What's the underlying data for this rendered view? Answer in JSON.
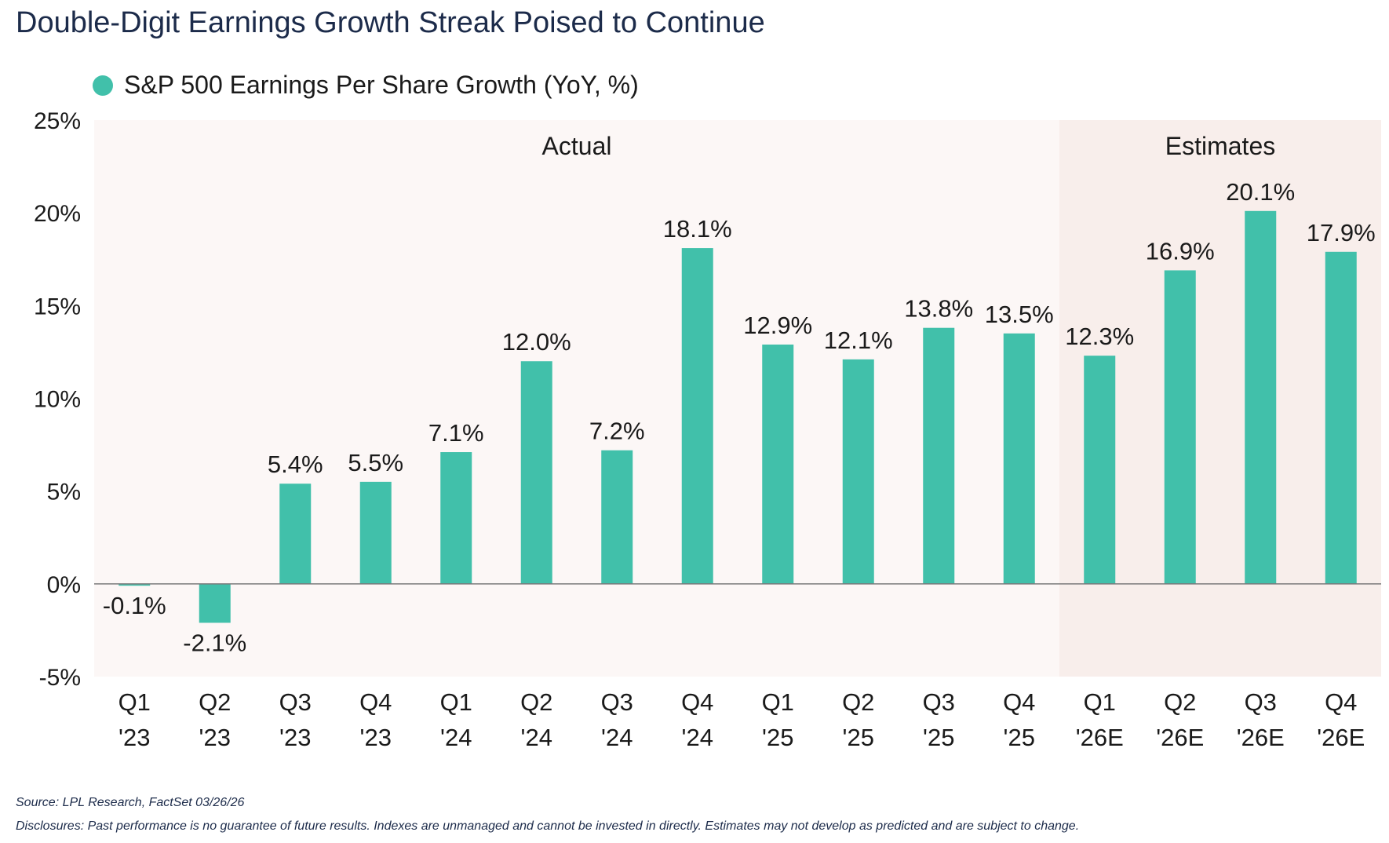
{
  "title": "Double-Digit Earnings Growth Streak Poised to Continue",
  "source": "Source: LPL Research, FactSet 03/26/26",
  "disclosure": "Disclosures: Past performance is no guarantee of future results. Indexes are unmanaged and cannot be invested in directly. Estimates may not develop as predicted and are subject to change.",
  "chart_data": {
    "type": "bar",
    "categories": [
      "Q1 '23",
      "Q2 '23",
      "Q3 '23",
      "Q4 '23",
      "Q1 '24",
      "Q2 '24",
      "Q3 '24",
      "Q4 '24",
      "Q1 '25",
      "Q2 '25",
      "Q3 '25",
      "Q4 '25",
      "Q1 '26E",
      "Q2 '26E",
      "Q3 '26E",
      "Q4 '26E"
    ],
    "category_lines": [
      [
        "Q1",
        "'23"
      ],
      [
        "Q2",
        "'23"
      ],
      [
        "Q3",
        "'23"
      ],
      [
        "Q4",
        "'23"
      ],
      [
        "Q1",
        "'24"
      ],
      [
        "Q2",
        "'24"
      ],
      [
        "Q3",
        "'24"
      ],
      [
        "Q4",
        "'24"
      ],
      [
        "Q1",
        "'25"
      ],
      [
        "Q2",
        "'25"
      ],
      [
        "Q3",
        "'25"
      ],
      [
        "Q4",
        "'25"
      ],
      [
        "Q1",
        "'26E"
      ],
      [
        "Q2",
        "'26E"
      ],
      [
        "Q3",
        "'26E"
      ],
      [
        "Q4",
        "'26E"
      ]
    ],
    "series": [
      {
        "name": "S&P 500 Earnings Per Share Growth (YoY, %)",
        "values": [
          -0.1,
          -2.1,
          5.4,
          5.5,
          7.1,
          12.0,
          7.2,
          18.1,
          12.9,
          12.1,
          13.8,
          13.5,
          12.3,
          16.9,
          20.1,
          17.9
        ],
        "labels": [
          "-0.1%",
          "-2.1%",
          "5.4%",
          "5.5%",
          "7.1%",
          "12.0%",
          "7.2%",
          "18.1%",
          "12.9%",
          "12.1%",
          "13.8%",
          "13.5%",
          "12.3%",
          "16.9%",
          "20.1%",
          "17.9%"
        ],
        "color": "#41c0aa"
      }
    ],
    "ylim": [
      -5,
      25
    ],
    "yticks": [
      -5,
      0,
      5,
      10,
      15,
      20,
      25
    ],
    "ytick_labels": [
      "-5%",
      "0%",
      "5%",
      "10%",
      "15%",
      "20%",
      "25%"
    ],
    "regions": [
      {
        "label": "Actual",
        "from_index": 0,
        "to_index": 11,
        "color": "#fcf7f6"
      },
      {
        "label": "Estimates",
        "from_index": 12,
        "to_index": 15,
        "color": "#f8eeeb"
      }
    ],
    "legend_position": "top-left",
    "grid": false
  }
}
